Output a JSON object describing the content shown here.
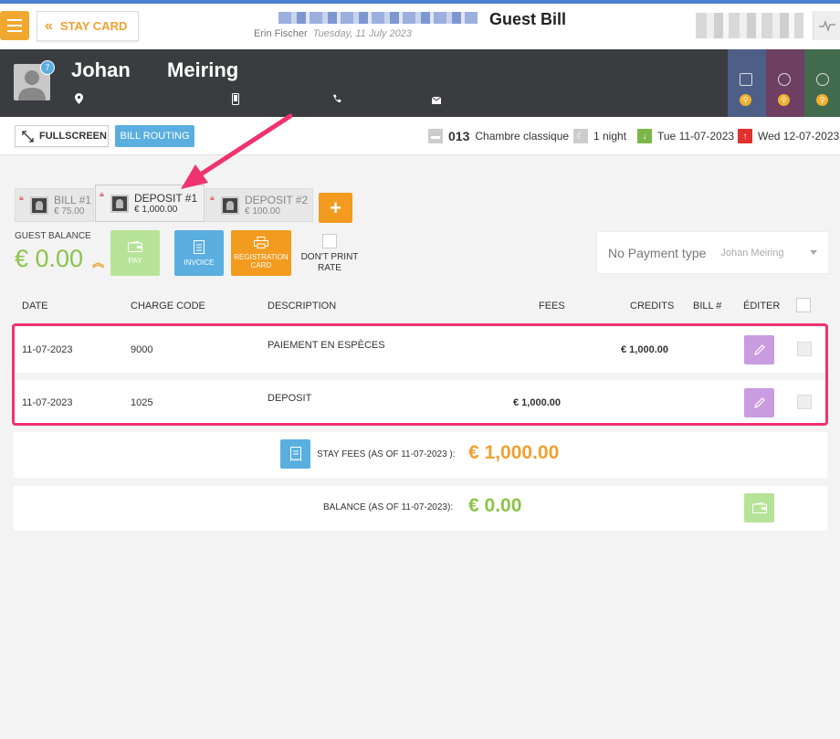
{
  "topbar": {
    "stay_card_label": "STAY CARD",
    "page_title": "Guest Bill",
    "user_name": "Erin Fischer",
    "date": "Tuesday, 11 July 2023"
  },
  "guest": {
    "first_name": "Johan",
    "last_name": "Meiring",
    "notification_count": "7"
  },
  "toolbar": {
    "fullscreen_label": "FULLSCREEN",
    "bill_routing_label": "BILL ROUTING"
  },
  "stay": {
    "room_number": "013",
    "room_type": "Chambre classique",
    "nights": "1 night",
    "arrival": "Tue 11-07-2023",
    "departure": "Wed 12-07-2023"
  },
  "bills": [
    {
      "title": "BILL #1",
      "amount": "€ 75.00"
    },
    {
      "title": "DEPOSIT #1",
      "amount": "€ 1,000.00"
    },
    {
      "title": "DEPOSIT #2",
      "amount": "€ 100.00"
    }
  ],
  "balance": {
    "label": "GUEST BALANCE",
    "value": "€ 0.00"
  },
  "actions": {
    "pay": "PAY",
    "invoice": "INVOICE",
    "registration_card": "REGISTRATION CARD",
    "dont_print_rate": "DON'T PRINT RATE"
  },
  "payment": {
    "type": "No Payment type",
    "payer": "Johan Meiring"
  },
  "table": {
    "headers": {
      "date": "DATE",
      "charge_code": "CHARGE CODE",
      "description": "DESCRIPTION",
      "fees": "FEES",
      "credits": "CREDITS",
      "bill_no": "BILL #",
      "edit": "ÉDITER"
    },
    "rows": [
      {
        "date": "11-07-2023",
        "charge_code": "9000",
        "description": "PAIEMENT EN ESPÈCES",
        "fees": "",
        "credits": "€ 1,000.00"
      },
      {
        "date": "11-07-2023",
        "charge_code": "1025",
        "description": "DEPOSIT",
        "fees": "€ 1,000.00",
        "credits": ""
      }
    ]
  },
  "totals": {
    "stay_fees_label": "STAY FEES (AS OF  11-07-2023 ):",
    "stay_fees_value": "€ 1,000.00",
    "balance_label": "BALANCE (AS OF  11-07-2023):",
    "balance_value": "€ 0.00"
  },
  "colors": {
    "accent_orange": "#f0a030",
    "accent_blue": "#5aaee0",
    "balance_green": "#8cc44a",
    "highlight_pink": "#f0336e"
  }
}
